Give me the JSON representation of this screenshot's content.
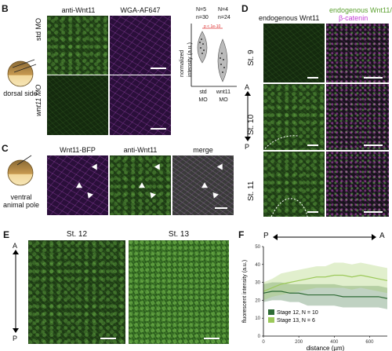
{
  "panelB": {
    "label": "B",
    "col_headers": [
      "anti-Wnt11",
      "WGA-AF647"
    ],
    "row_labels": [
      "std MO",
      "wnt11 MO"
    ],
    "embryo_label": "dorsal side",
    "plot": {
      "n_labels": [
        "N=5\nn=30",
        "N=4\nn=24"
      ],
      "ylabel": "normalized\nintensity (a.u.)",
      "pval": "p < 1e-10",
      "xticks": [
        "std\nMO",
        "wnt11\nMO"
      ]
    }
  },
  "panelC": {
    "label": "C",
    "col_headers": [
      "Wnt11-BFP",
      "anti-Wnt11",
      "merge"
    ],
    "embryo_label": "ventral\nanimal pole"
  },
  "panelD": {
    "label": "D",
    "col_headers": [
      "endogenous Wnt11",
      "endogenous Wnt11/",
      "β-catenin"
    ],
    "row_labels": [
      "St. 9",
      "St. 10",
      "St. 11"
    ],
    "axis_top": "A",
    "axis_bottom": "P"
  },
  "panelE": {
    "label": "E",
    "col_headers": [
      "St. 12",
      "St. 13"
    ],
    "axis_top": "A",
    "axis_bottom": "P"
  },
  "panelF": {
    "label": "F",
    "axis_left": "P",
    "axis_right": "A"
  },
  "chart_data": {
    "type": "line",
    "title": "",
    "xlabel": "distance (µm)",
    "ylabel": "fluorescent intensity (a.u.)",
    "xlim": [
      0,
      700
    ],
    "ylim": [
      0,
      50
    ],
    "xticks": [
      0,
      200,
      400,
      600
    ],
    "yticks": [
      0,
      10,
      20,
      30,
      40,
      50
    ],
    "x": [
      0,
      50,
      100,
      150,
      200,
      250,
      300,
      350,
      400,
      450,
      500,
      550,
      600,
      650,
      700
    ],
    "series": [
      {
        "name": "Stage 12, N = 10",
        "color": "#2e6b35",
        "values": [
          24,
          25,
          25,
          24,
          24,
          23,
          23,
          23,
          23,
          22,
          22,
          22,
          22,
          22,
          21
        ],
        "band": [
          5,
          5,
          5,
          5,
          5,
          6,
          6,
          6,
          6,
          6,
          6,
          6,
          6,
          6,
          6
        ]
      },
      {
        "name": "Stage 13, N = 6",
        "color": "#9cc95a",
        "values": [
          25,
          27,
          29,
          30,
          31,
          32,
          33,
          33,
          34,
          34,
          33,
          34,
          33,
          32,
          31
        ],
        "band": [
          5,
          5,
          6,
          6,
          6,
          6,
          6,
          6,
          7,
          7,
          7,
          7,
          7,
          7,
          7
        ]
      }
    ]
  }
}
